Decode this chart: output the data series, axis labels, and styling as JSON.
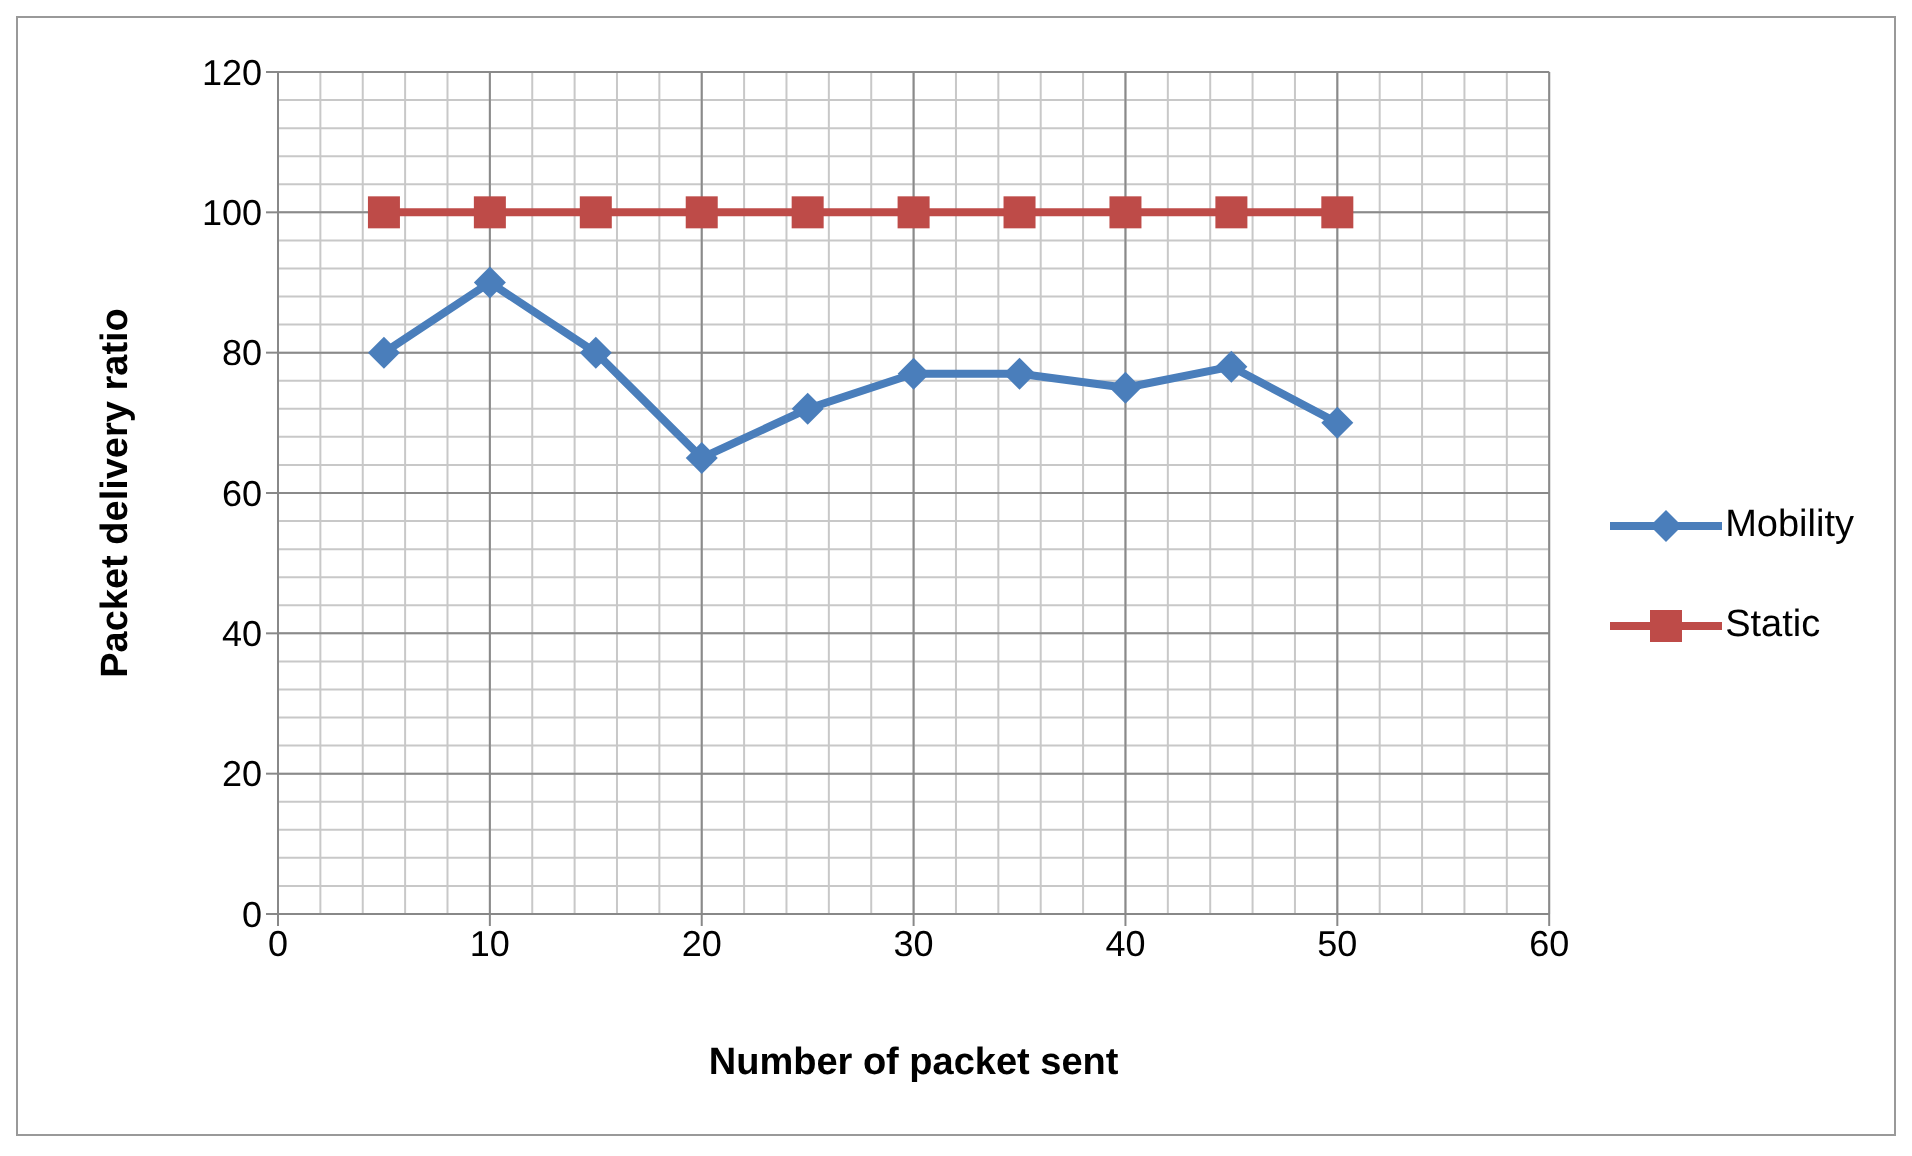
{
  "chart_data": {
    "type": "line",
    "xlabel": "Number of packet sent",
    "ylabel": "Packet delivery ratio",
    "x": [
      5,
      10,
      15,
      20,
      25,
      30,
      35,
      40,
      45,
      50
    ],
    "series": [
      {
        "name": "Mobility",
        "color": "#4a7ebb",
        "marker": "diamond",
        "values": [
          80,
          90,
          80,
          65,
          72,
          77,
          77,
          75,
          78,
          70
        ]
      },
      {
        "name": "Static",
        "color": "#be4b48",
        "marker": "square",
        "values": [
          100,
          100,
          100,
          100,
          100,
          100,
          100,
          100,
          100,
          100
        ]
      }
    ],
    "xlim": [
      0,
      60
    ],
    "xticks": [
      0,
      10,
      20,
      30,
      40,
      50,
      60
    ],
    "ylim": [
      0,
      120
    ],
    "yticks": [
      0,
      20,
      40,
      60,
      80,
      100,
      120
    ],
    "grid": true,
    "legend": "right"
  }
}
